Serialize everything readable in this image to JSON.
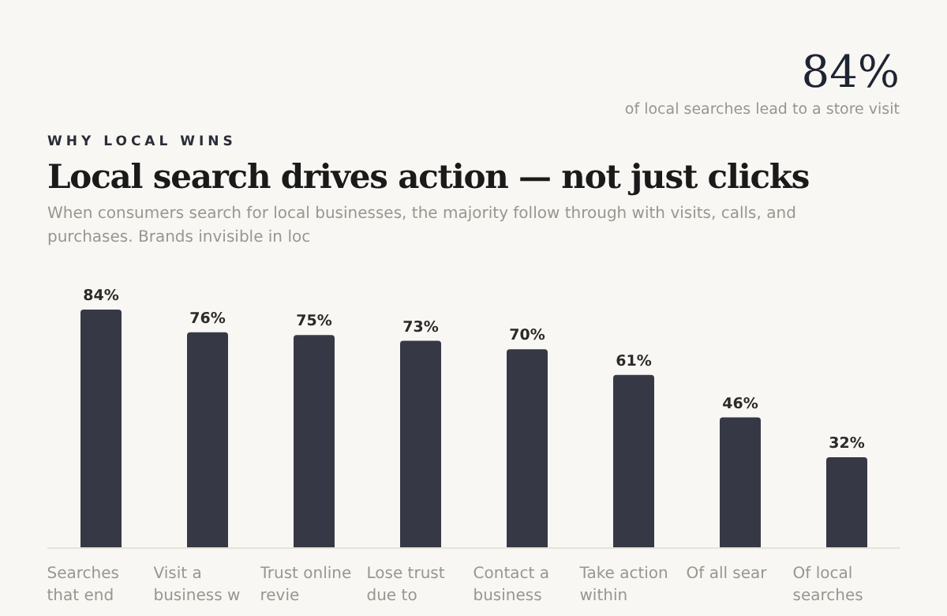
{
  "chart_data": {
    "type": "bar",
    "title": "Local search drives action — not just clicks",
    "subtitle": "When consumers search for local businesses, the majority follow through with visits, calls, and purchases. Brands invisible in loc",
    "annotations": [
      "WHY LOCAL WINS",
      "84%",
      "of local searches lead to a store visit"
    ],
    "categories": [
      "Searches that end",
      "Visit a business w",
      "Trust online revie",
      "Lose trust due to",
      "Contact a business",
      "Take action within",
      "Of all sear",
      "Of local searches"
    ],
    "values": [
      84,
      76,
      75,
      73,
      70,
      61,
      46,
      32
    ],
    "value_labels": [
      "84%",
      "76%",
      "75%",
      "73%",
      "70%",
      "61%",
      "46%",
      "32%"
    ],
    "color": "#363945"
  }
}
